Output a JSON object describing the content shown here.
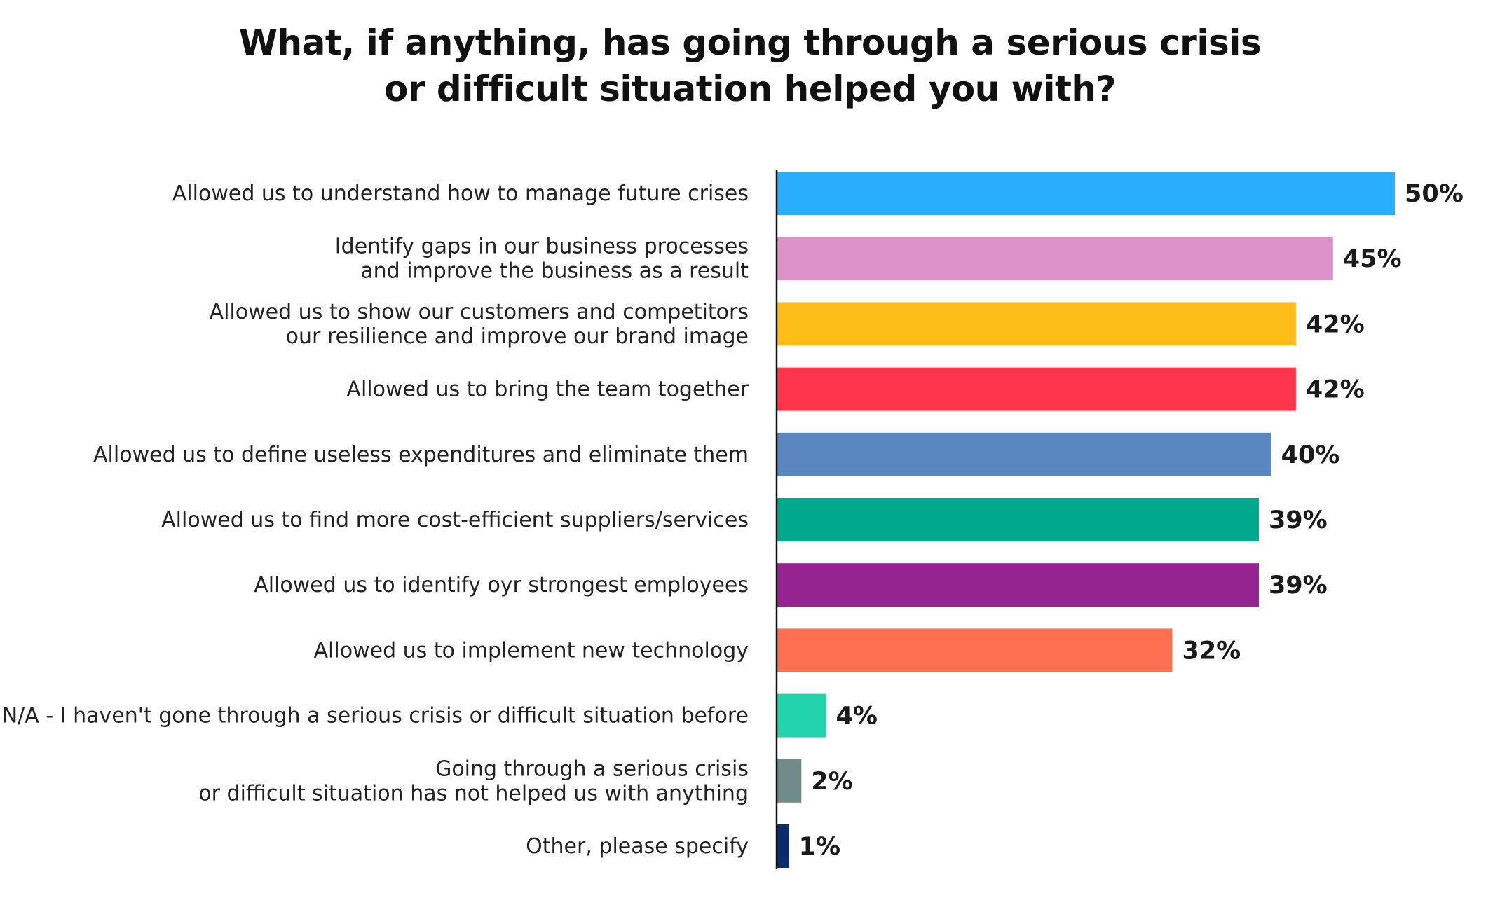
{
  "chart_data": {
    "type": "bar",
    "orientation": "horizontal",
    "title": "What, if anything, has going through a serious crisis or difficult situation helped you with?",
    "title_lines": [
      "What, if anything, has going through a serious crisis",
      "or difficult situation helped you with?"
    ],
    "categories": [
      "Allowed us to understand how to manage future crises",
      "Identify gaps in our business processes and improve the business as a result",
      "Allowed us to show our customers and competitors our resilience and improve our brand image",
      "Allowed us to bring the team together",
      "Allowed us to define useless expenditures and eliminate them",
      "Allowed us to find more cost-efficient suppliers/services",
      "Allowed us to identify oyr strongest employees",
      "Allowed us to implement new technology",
      "N/A - I haven't gone through a serious crisis or difficult situation before",
      "Going through a serious crisis or difficult situation has not helped us with anything",
      "Other, please specify"
    ],
    "category_lines": [
      [
        "Allowed us to understand how to manage future crises"
      ],
      [
        "Identify gaps in our business processes",
        "and improve the business as a result"
      ],
      [
        "Allowed us to show our customers and competitors",
        "our resilience and improve our brand image"
      ],
      [
        "Allowed us to bring the team together"
      ],
      [
        "Allowed us to define useless expenditures and eliminate them"
      ],
      [
        "Allowed us to find more cost-efficient suppliers/services"
      ],
      [
        "Allowed us to identify oyr strongest employees"
      ],
      [
        "Allowed us to implement new technology"
      ],
      [
        "N/A - I haven't gone through a serious crisis or difficult situation before"
      ],
      [
        "Going through a serious crisis",
        "or difficult situation has not helped us with anything"
      ],
      [
        "Other, please specify"
      ]
    ],
    "values": [
      50,
      45,
      42,
      42,
      40,
      39,
      39,
      32,
      4,
      2,
      1
    ],
    "value_labels": [
      "50%",
      "45%",
      "42%",
      "42%",
      "40%",
      "39%",
      "39%",
      "32%",
      "4%",
      "2%",
      "1%"
    ],
    "colors": [
      "#29aefe",
      "#dc92c8",
      "#fdbd19",
      "#ff364b",
      "#5b87c0",
      "#00a88e",
      "#962490",
      "#ff6f52",
      "#22d3ae",
      "#6f8c8a",
      "#0e2a6e"
    ],
    "xlim": [
      0,
      50
    ],
    "grid": false,
    "legend": "none"
  }
}
